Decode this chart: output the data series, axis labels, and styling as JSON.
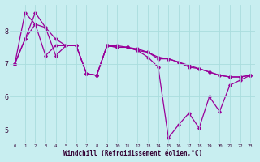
{
  "xlabel": "Windchill (Refroidissement éolien,°C)",
  "background_color": "#c8eef0",
  "grid_color": "#aadddd",
  "line_color": "#990099",
  "xlim": [
    -0.5,
    23.5
  ],
  "ylim": [
    4.6,
    8.8
  ],
  "xticks": [
    0,
    1,
    2,
    3,
    4,
    5,
    6,
    7,
    8,
    9,
    10,
    11,
    12,
    13,
    14,
    15,
    16,
    17,
    18,
    19,
    20,
    21,
    22,
    23
  ],
  "yticks": [
    5,
    6,
    7,
    8
  ],
  "lines": [
    [
      7.0,
      7.75,
      8.55,
      8.1,
      7.75,
      7.55,
      7.55,
      6.7,
      6.65,
      7.55,
      7.55,
      7.5,
      7.45,
      7.35,
      7.2,
      7.15,
      7.05,
      6.95,
      6.85,
      6.75,
      6.65,
      6.6,
      6.6,
      6.65
    ],
    [
      7.0,
      8.55,
      8.2,
      7.25,
      7.55,
      7.55,
      7.55,
      6.7,
      6.65,
      7.55,
      7.5,
      7.5,
      7.4,
      7.2,
      6.9,
      4.75,
      5.15,
      5.5,
      5.05,
      6.0,
      5.55,
      6.35,
      6.5,
      6.65
    ],
    [
      7.0,
      7.75,
      8.2,
      8.1,
      7.25,
      7.55,
      7.55,
      6.7,
      6.65,
      7.55,
      7.5,
      7.5,
      7.4,
      7.35,
      7.15,
      7.15,
      7.05,
      6.9,
      6.85,
      6.75,
      6.65,
      6.6,
      6.6,
      6.65
    ]
  ]
}
